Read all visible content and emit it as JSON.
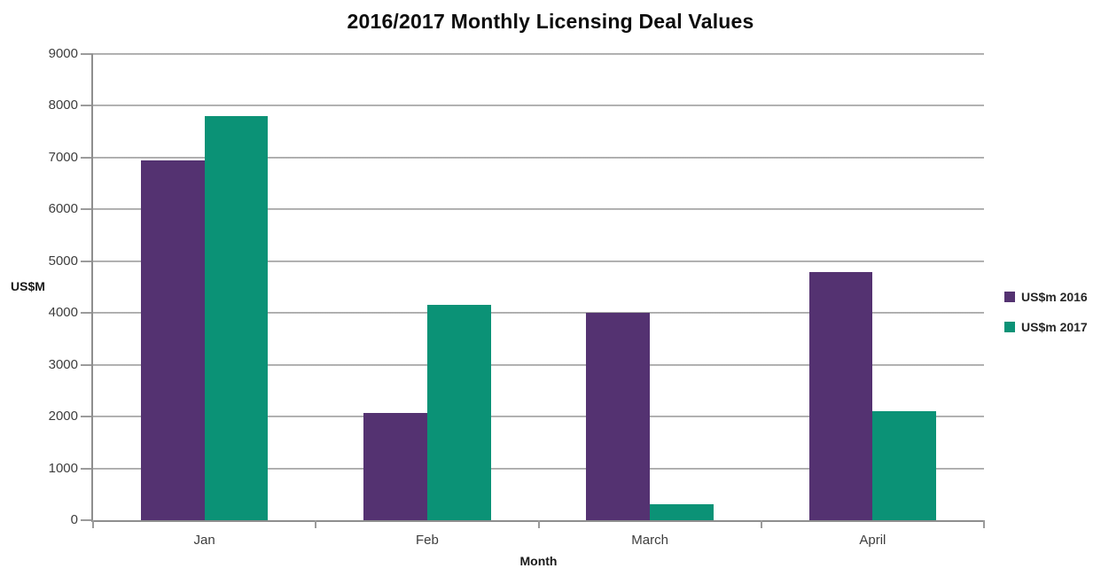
{
  "chart_data": {
    "type": "bar",
    "title": "2016/2017 Monthly Licensing Deal Values",
    "xlabel": "Month",
    "ylabel": "US$M",
    "categories": [
      "Jan",
      "Feb",
      "March",
      "April"
    ],
    "series": [
      {
        "name": "US$m 2016",
        "color": "#543271",
        "values": [
          6950,
          2070,
          4000,
          4790
        ]
      },
      {
        "name": "US$m 2017",
        "color": "#0B9276",
        "values": [
          7800,
          4160,
          300,
          2110
        ]
      }
    ],
    "ylim": [
      0,
      9000
    ],
    "ytick_step": 1000,
    "grid": true,
    "gap_width_percent": 150,
    "legend_position": "right",
    "legend_entries": [
      "US$m 2016",
      "US$m 2017"
    ]
  }
}
